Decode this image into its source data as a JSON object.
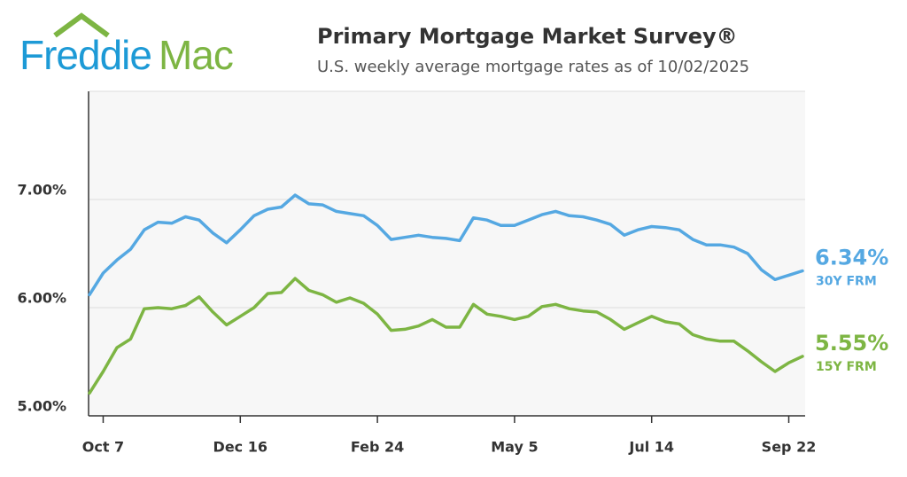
{
  "logo": [
    "Freddie",
    "Mac"
  ],
  "chart_data": {
    "type": "line",
    "title": "Primary Mortgage Market Survey®",
    "subtitle": "U.S. weekly average mortgage rates as of 10/02/2025",
    "categories": [
      null,
      "Oct 7",
      null,
      null,
      null,
      null,
      null,
      null,
      null,
      null,
      null,
      "Dec 16",
      null,
      null,
      null,
      null,
      null,
      null,
      null,
      null,
      null,
      "Feb 24",
      null,
      null,
      null,
      null,
      null,
      null,
      null,
      null,
      null,
      "May 5",
      null,
      null,
      null,
      null,
      null,
      null,
      null,
      null,
      null,
      "Jul 14",
      null,
      null,
      null,
      null,
      null,
      null,
      null,
      null,
      null,
      "Sep 22",
      null
    ],
    "series": [
      {
        "name": "30Y FRM",
        "color": "#55a8e2",
        "values": [
          6.12,
          6.32,
          6.44,
          6.54,
          6.72,
          6.79,
          6.78,
          6.84,
          6.81,
          6.69,
          6.6,
          6.72,
          6.85,
          6.91,
          6.93,
          7.04,
          6.96,
          6.95,
          6.89,
          6.87,
          6.85,
          6.76,
          6.63,
          6.65,
          6.67,
          6.65,
          6.64,
          6.62,
          6.83,
          6.81,
          6.76,
          6.76,
          6.81,
          6.86,
          6.89,
          6.85,
          6.84,
          6.81,
          6.77,
          6.67,
          6.72,
          6.75,
          6.74,
          6.72,
          6.63,
          6.58,
          6.58,
          6.56,
          6.5,
          6.35,
          6.26,
          6.3,
          6.34
        ],
        "value_labels": [
          null,
          null,
          null,
          null,
          null,
          null,
          null,
          null,
          null,
          null,
          null,
          null,
          null,
          null,
          null,
          null,
          null,
          null,
          null,
          null,
          null,
          null,
          null,
          null,
          null,
          null,
          null,
          null,
          null,
          null,
          null,
          null,
          null,
          null,
          null,
          null,
          null,
          null,
          null,
          null,
          null,
          null,
          null,
          null,
          null,
          null,
          null,
          null,
          null,
          null,
          null,
          null,
          "6.34%"
        ]
      },
      {
        "name": "15Y FRM",
        "color": "#7db543",
        "values": [
          5.21,
          5.41,
          5.63,
          5.71,
          5.99,
          6.0,
          5.99,
          6.02,
          6.1,
          5.96,
          5.84,
          5.92,
          6.0,
          6.13,
          6.14,
          6.27,
          6.16,
          6.12,
          6.05,
          6.09,
          6.04,
          5.94,
          5.79,
          5.8,
          5.83,
          5.89,
          5.82,
          5.82,
          6.03,
          5.94,
          5.92,
          5.89,
          5.92,
          6.01,
          6.03,
          5.99,
          5.97,
          5.96,
          5.89,
          5.8,
          5.86,
          5.92,
          5.87,
          5.85,
          5.75,
          5.71,
          5.69,
          5.69,
          5.6,
          5.5,
          5.41,
          5.49,
          5.55
        ],
        "value_labels": [
          null,
          null,
          null,
          null,
          null,
          null,
          null,
          null,
          null,
          null,
          null,
          null,
          null,
          null,
          null,
          null,
          null,
          null,
          null,
          null,
          null,
          null,
          null,
          null,
          null,
          null,
          null,
          null,
          null,
          null,
          null,
          null,
          null,
          null,
          null,
          null,
          null,
          null,
          null,
          null,
          null,
          null,
          null,
          null,
          null,
          null,
          null,
          null,
          null,
          null,
          null,
          null,
          "5.55%"
        ]
      }
    ],
    "ylim": [
      5,
      8
    ],
    "yticks": [
      {
        "value": 5,
        "label": "5.00%"
      },
      {
        "value": 6,
        "label": "6.00%"
      },
      {
        "value": 7,
        "label": "7.00%"
      }
    ],
    "grid": true
  }
}
